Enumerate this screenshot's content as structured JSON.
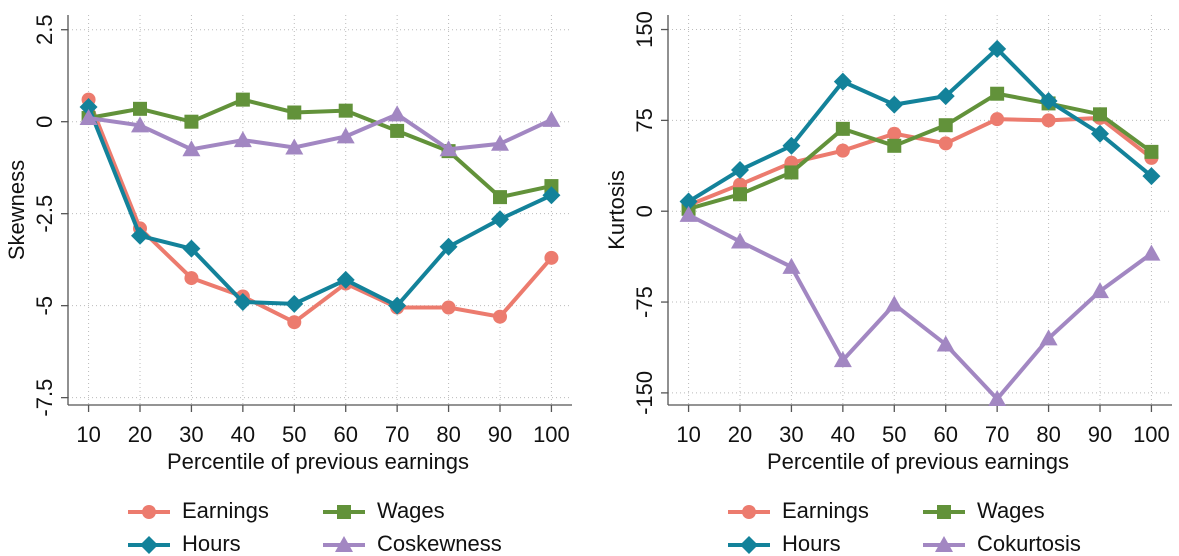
{
  "chart_data": [
    {
      "type": "line",
      "xlabel": "Percentile of previous earnings",
      "ylabel": "Skewness",
      "x": [
        10,
        20,
        30,
        40,
        50,
        60,
        70,
        80,
        90,
        100
      ],
      "xlim": [
        6,
        104
      ],
      "xticks": [
        10,
        20,
        30,
        40,
        50,
        60,
        70,
        80,
        90,
        100
      ],
      "ylim": [
        -7.7,
        2.9
      ],
      "yticks": [
        -7.5,
        -5,
        -2.5,
        0,
        2.5
      ],
      "grid": true,
      "series": [
        {
          "name": "Earnings",
          "color": "#ec7b6e",
          "marker": "circle",
          "values": [
            0.6,
            -2.9,
            -4.25,
            -4.75,
            -5.45,
            -4.4,
            -5.05,
            -5.05,
            -5.3,
            -3.7
          ]
        },
        {
          "name": "Wages",
          "color": "#62923a",
          "marker": "square",
          "values": [
            0.1,
            0.35,
            0,
            0.6,
            0.25,
            0.3,
            -0.25,
            -0.8,
            -2.05,
            -1.75
          ]
        },
        {
          "name": "Hours",
          "color": "#13829a",
          "marker": "diamond",
          "values": [
            0.4,
            -3.1,
            -3.45,
            -4.9,
            -4.95,
            -4.3,
            -5.0,
            -3.4,
            -2.65,
            -2.0
          ]
        },
        {
          "name": "Coskewness",
          "color": "#a287c2",
          "marker": "triangle",
          "values": [
            0.1,
            -0.1,
            -0.75,
            -0.5,
            -0.7,
            -0.4,
            0.2,
            -0.75,
            -0.6,
            0.05
          ]
        }
      ]
    },
    {
      "type": "line",
      "xlabel": "Percentile of previous earnings",
      "ylabel": "Kurtosis",
      "x": [
        10,
        20,
        30,
        40,
        50,
        60,
        70,
        80,
        90,
        100
      ],
      "xlim": [
        6,
        104
      ],
      "xticks": [
        10,
        20,
        30,
        40,
        50,
        60,
        70,
        80,
        90,
        100
      ],
      "ylim": [
        -160,
        162
      ],
      "yticks": [
        -150,
        -75,
        0,
        75,
        150
      ],
      "grid": true,
      "series": [
        {
          "name": "Earnings",
          "color": "#ec7b6e",
          "marker": "circle",
          "values": [
            5,
            22,
            40,
            50,
            64,
            56,
            76,
            75,
            77,
            44
          ]
        },
        {
          "name": "Wages",
          "color": "#62923a",
          "marker": "square",
          "values": [
            2,
            14,
            32,
            68,
            54,
            71,
            97,
            89,
            80,
            49
          ]
        },
        {
          "name": "Hours",
          "color": "#13829a",
          "marker": "diamond",
          "values": [
            8,
            34,
            54,
            107,
            88,
            95,
            134,
            91,
            64,
            29
          ]
        },
        {
          "name": "Cokurtosis",
          "color": "#a287c2",
          "marker": "triangle",
          "values": [
            -3,
            -25,
            -46,
            -123,
            -77,
            -110,
            -155,
            -105,
            -66,
            -35
          ]
        }
      ]
    }
  ]
}
